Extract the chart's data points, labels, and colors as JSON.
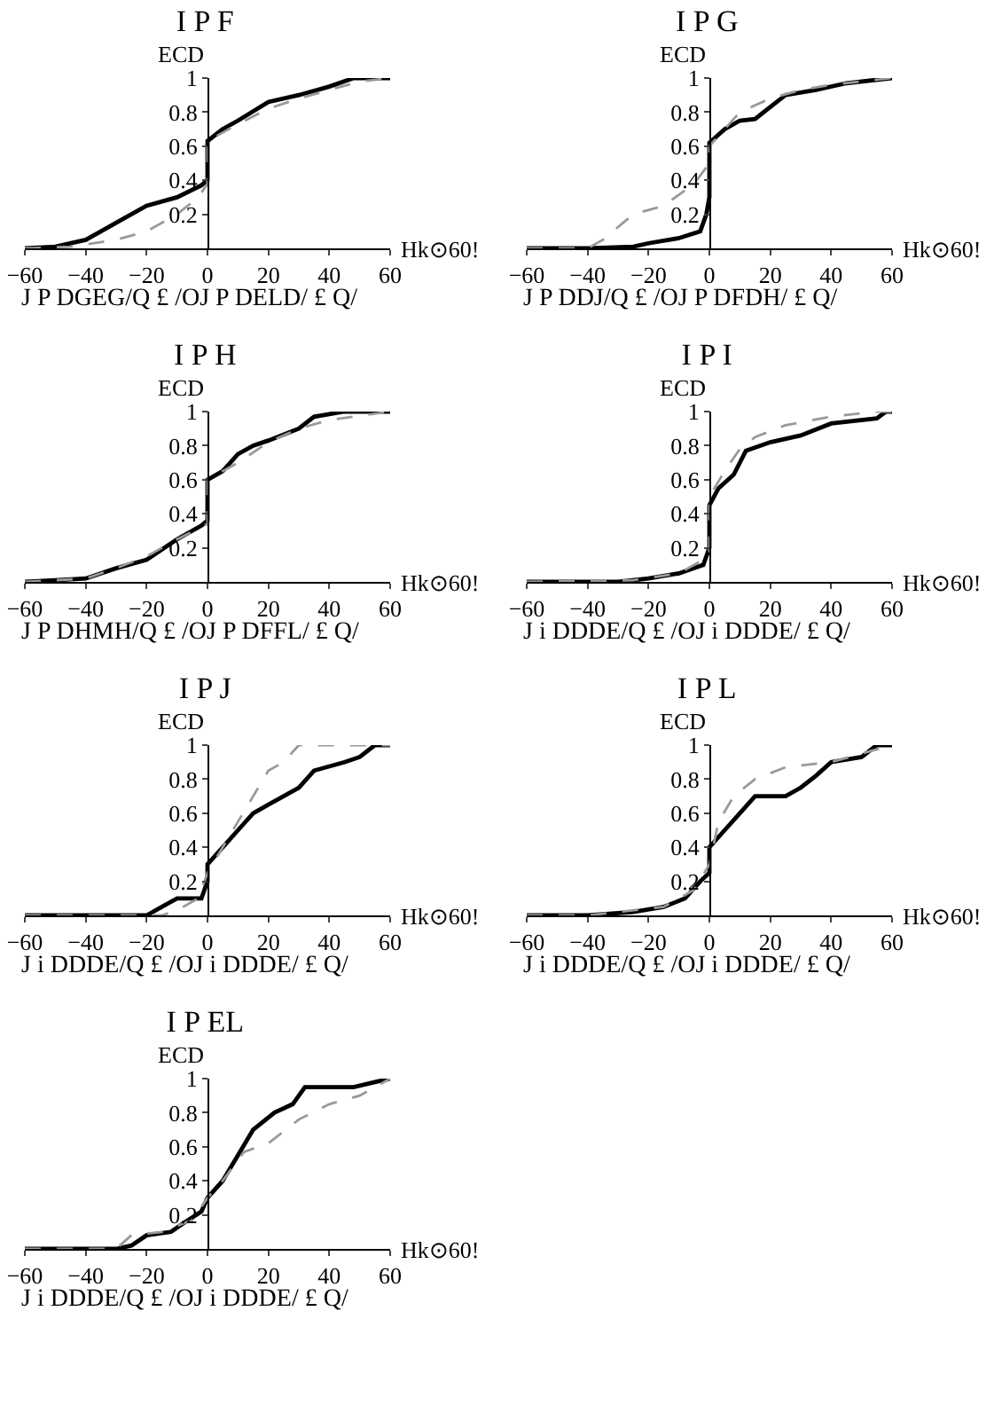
{
  "chart_data": [
    {
      "type": "line",
      "title": "I P F",
      "subtitle": "J P DGEG/Q £ /OJ P DELD/ £ Q/",
      "xlabel": "Hk⊙60!",
      "ylabel": "ECD",
      "xlim": [
        -60,
        60
      ],
      "ylim": [
        0,
        1
      ],
      "xticks": [
        -60,
        -40,
        -20,
        0,
        20,
        40,
        60
      ],
      "yticks": [
        0.2,
        0.4,
        0.6,
        0.8,
        1.0
      ],
      "series": [
        {
          "color": "#000000",
          "line_style": "solid",
          "x": [
            -60,
            -50,
            -40,
            -30,
            -20,
            -10,
            -2,
            0,
            0,
            5,
            10,
            20,
            30,
            40,
            48,
            60
          ],
          "values": [
            0,
            0.01,
            0.05,
            0.15,
            0.25,
            0.3,
            0.37,
            0.4,
            0.63,
            0.7,
            0.75,
            0.86,
            0.9,
            0.95,
            1,
            1
          ]
        },
        {
          "color": "#999999",
          "line_style": "dashed",
          "x": [
            -60,
            -45,
            -30,
            -20,
            -10,
            -3,
            0,
            0,
            10,
            20,
            30,
            40,
            50,
            60
          ],
          "values": [
            0,
            0.01,
            0.05,
            0.1,
            0.2,
            0.3,
            0.38,
            0.63,
            0.73,
            0.82,
            0.88,
            0.93,
            0.98,
            1
          ]
        }
      ]
    },
    {
      "type": "line",
      "title": "I P G",
      "subtitle": "J P DDJ/Q £ /OJ P DFDH/ £ Q/",
      "xlabel": "Hk⊙60!",
      "ylabel": "ECD",
      "xlim": [
        -60,
        60
      ],
      "ylim": [
        0,
        1
      ],
      "xticks": [
        -60,
        -40,
        -20,
        0,
        20,
        40,
        60
      ],
      "yticks": [
        0.2,
        0.4,
        0.6,
        0.8,
        1.0
      ],
      "series": [
        {
          "color": "#000000",
          "line_style": "solid",
          "x": [
            -60,
            -40,
            -25,
            -20,
            -10,
            -3,
            -1,
            0,
            0,
            5,
            10,
            15,
            20,
            25,
            35,
            45,
            60
          ],
          "values": [
            0,
            0,
            0.01,
            0.03,
            0.06,
            0.1,
            0.2,
            0.3,
            0.62,
            0.7,
            0.75,
            0.76,
            0.83,
            0.9,
            0.93,
            0.97,
            1
          ]
        },
        {
          "color": "#999999",
          "line_style": "dashed",
          "x": [
            -60,
            -40,
            -35,
            -25,
            -15,
            -5,
            0,
            0,
            5,
            10,
            20,
            30,
            40,
            60
          ],
          "values": [
            0,
            0,
            0.05,
            0.2,
            0.25,
            0.38,
            0.5,
            0.6,
            0.7,
            0.8,
            0.88,
            0.93,
            0.96,
            1
          ]
        }
      ]
    },
    {
      "type": "line",
      "title": "I P H",
      "subtitle": "J P DHMH/Q £ /OJ P DFFL/ £ Q/",
      "xlabel": "Hk⊙60!",
      "ylabel": "ECD",
      "xlim": [
        -60,
        60
      ],
      "ylim": [
        0,
        1
      ],
      "xticks": [
        -60,
        -40,
        -20,
        0,
        20,
        40,
        60
      ],
      "yticks": [
        0.2,
        0.4,
        0.6,
        0.8,
        1.0
      ],
      "series": [
        {
          "color": "#000000",
          "line_style": "solid",
          "x": [
            -60,
            -50,
            -40,
            -30,
            -20,
            -10,
            -2,
            0,
            0,
            5,
            10,
            15,
            20,
            30,
            35,
            45,
            60
          ],
          "values": [
            0,
            0.01,
            0.02,
            0.08,
            0.13,
            0.25,
            0.33,
            0.36,
            0.6,
            0.65,
            0.75,
            0.8,
            0.83,
            0.9,
            0.97,
            1,
            1
          ]
        },
        {
          "color": "#999999",
          "line_style": "dashed",
          "x": [
            -60,
            -40,
            -30,
            -20,
            -10,
            0,
            0,
            10,
            20,
            30,
            40,
            60
          ],
          "values": [
            0,
            0.02,
            0.08,
            0.15,
            0.25,
            0.34,
            0.6,
            0.7,
            0.82,
            0.9,
            0.95,
            1
          ]
        }
      ]
    },
    {
      "type": "line",
      "title": "I P I",
      "subtitle": "J i DDDE/Q £ /OJ i DDDE/ £ Q/",
      "xlabel": "Hk⊙60!",
      "ylabel": "ECD",
      "xlim": [
        -60,
        60
      ],
      "ylim": [
        0,
        1
      ],
      "xticks": [
        -60,
        -40,
        -20,
        0,
        20,
        40,
        60
      ],
      "yticks": [
        0.2,
        0.4,
        0.6,
        0.8,
        1.0
      ],
      "series": [
        {
          "color": "#000000",
          "line_style": "solid",
          "x": [
            -60,
            -30,
            -20,
            -10,
            -2,
            0,
            0,
            3,
            8,
            12,
            20,
            30,
            40,
            55,
            58,
            60
          ],
          "values": [
            0,
            0,
            0.02,
            0.05,
            0.1,
            0.2,
            0.45,
            0.55,
            0.63,
            0.77,
            0.82,
            0.86,
            0.93,
            0.96,
            1,
            1
          ]
        },
        {
          "color": "#999999",
          "line_style": "dashed",
          "x": [
            -60,
            -25,
            -10,
            0,
            0,
            5,
            10,
            15,
            25,
            40,
            55,
            60
          ],
          "values": [
            0,
            0.01,
            0.05,
            0.15,
            0.5,
            0.65,
            0.78,
            0.85,
            0.92,
            0.97,
            1,
            1
          ]
        }
      ]
    },
    {
      "type": "line",
      "title": "I P J",
      "subtitle": "J i DDDE/Q £ /OJ i DDDE/ £ Q/",
      "xlabel": "Hk⊙60!",
      "ylabel": "ECD",
      "xlim": [
        -60,
        60
      ],
      "ylim": [
        0,
        1
      ],
      "xticks": [
        -60,
        -40,
        -20,
        0,
        20,
        40,
        60
      ],
      "yticks": [
        0.2,
        0.4,
        0.6,
        0.8,
        1.0
      ],
      "series": [
        {
          "color": "#000000",
          "line_style": "solid",
          "x": [
            -60,
            -20,
            -15,
            -10,
            -2,
            0,
            0,
            10,
            15,
            20,
            30,
            35,
            45,
            50,
            55,
            60
          ],
          "values": [
            0,
            0,
            0.05,
            0.1,
            0.1,
            0.2,
            0.3,
            0.5,
            0.6,
            0.65,
            0.75,
            0.85,
            0.9,
            0.93,
            1,
            1
          ]
        },
        {
          "color": "#999999",
          "line_style": "dashed",
          "x": [
            -60,
            -15,
            -10,
            -3,
            0,
            5,
            10,
            15,
            20,
            25,
            30,
            60
          ],
          "values": [
            0,
            0,
            0.03,
            0.1,
            0.25,
            0.4,
            0.55,
            0.7,
            0.85,
            0.9,
            1,
            1
          ]
        }
      ]
    },
    {
      "type": "line",
      "title": "I P L",
      "subtitle": "J i DDDE/Q £ /OJ i DDDE/ £ Q/",
      "xlabel": "Hk⊙60!",
      "ylabel": "ECD",
      "xlim": [
        -60,
        60
      ],
      "ylim": [
        0,
        1
      ],
      "xticks": [
        -60,
        -40,
        -20,
        0,
        20,
        40,
        60
      ],
      "yticks": [
        0.2,
        0.4,
        0.6,
        0.8,
        1.0
      ],
      "series": [
        {
          "color": "#000000",
          "line_style": "solid",
          "x": [
            -60,
            -40,
            -25,
            -15,
            -8,
            -3,
            0,
            0,
            5,
            10,
            15,
            25,
            30,
            35,
            40,
            50,
            55,
            60
          ],
          "values": [
            0,
            0,
            0.02,
            0.05,
            0.1,
            0.2,
            0.25,
            0.4,
            0.5,
            0.6,
            0.7,
            0.7,
            0.75,
            0.82,
            0.9,
            0.93,
            1,
            1
          ]
        },
        {
          "color": "#999999",
          "line_style": "dashed",
          "x": [
            -60,
            -40,
            -30,
            -15,
            -5,
            0,
            3,
            8,
            15,
            25,
            40,
            50,
            60
          ],
          "values": [
            0,
            0,
            0.02,
            0.05,
            0.15,
            0.3,
            0.55,
            0.7,
            0.8,
            0.87,
            0.9,
            0.95,
            1
          ]
        }
      ]
    },
    {
      "type": "line",
      "title": "I P EL",
      "subtitle": "J i DDDE/Q £ /OJ i DDDE/ £ Q/",
      "xlabel": "Hk⊙60!",
      "ylabel": "ECD",
      "xlim": [
        -60,
        60
      ],
      "ylim": [
        0,
        1
      ],
      "xticks": [
        -60,
        -40,
        -20,
        0,
        20,
        40,
        60
      ],
      "yticks": [
        0.2,
        0.4,
        0.6,
        0.8,
        1.0
      ],
      "series": [
        {
          "color": "#000000",
          "line_style": "solid",
          "x": [
            -60,
            -30,
            -25,
            -20,
            -12,
            -8,
            -2,
            0,
            5,
            10,
            15,
            22,
            28,
            32,
            48,
            55,
            60
          ],
          "values": [
            0,
            0,
            0.02,
            0.08,
            0.1,
            0.15,
            0.22,
            0.3,
            0.4,
            0.55,
            0.7,
            0.8,
            0.85,
            0.95,
            0.95,
            0.98,
            1
          ]
        },
        {
          "color": "#999999",
          "line_style": "dashed",
          "x": [
            -60,
            -30,
            -25,
            -15,
            -5,
            0,
            5,
            12,
            20,
            30,
            40,
            50,
            60
          ],
          "values": [
            0,
            0,
            0.08,
            0.1,
            0.17,
            0.3,
            0.4,
            0.57,
            0.62,
            0.76,
            0.85,
            0.9,
            1
          ]
        }
      ]
    }
  ]
}
